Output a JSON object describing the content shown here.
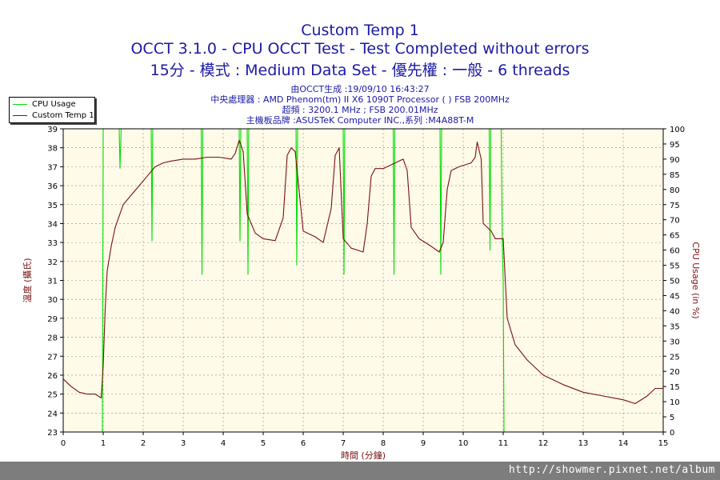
{
  "header": {
    "title": "Custom Temp 1",
    "subtitle1": "OCCT 3.1.0 - CPU OCCT Test - Test Completed without errors",
    "subtitle2": "15分 - 模式 : Medium Data Set - 優先權 : 一般 - 6 threads",
    "info1": "由OCCT生成 :19/09/10 16:43:27",
    "info2": "中央處理器 : AMD Phenom(tm) II X6 1090T Processor (   ) FSB 200MHz",
    "info3": "超頻 : 3200.1 MHz ; FSB 200.01MHz",
    "info4": "主機板品牌 :ASUSTeK Computer INC.,系列 :M4A88T-M"
  },
  "footer": {
    "watermark": "http://showmer.pixnet.net/album"
  },
  "colors": {
    "cpu_usage": "#00dd00",
    "temp": "#7a1010",
    "plot_bg": "#fffbe8",
    "text_blue": "#1a1aa6"
  },
  "chart_data": {
    "type": "line",
    "xlabel": "時間 (分鐘)",
    "ylabel_left": "溫度 (攝氏)",
    "ylabel_right": "CPU Usage (in %)",
    "xlim": [
      0,
      15
    ],
    "ylim_left": [
      23,
      39
    ],
    "ylim_right": [
      0,
      100
    ],
    "x_ticks": [
      "0",
      "1",
      "2",
      "3",
      "4",
      "5",
      "6",
      "7",
      "8",
      "9",
      "10",
      "11",
      "12",
      "13",
      "14",
      "15"
    ],
    "y_ticks_left": [
      "23",
      "24",
      "25",
      "26",
      "27",
      "28",
      "29",
      "30",
      "31",
      "32",
      "33",
      "34",
      "35",
      "36",
      "37",
      "38",
      "39"
    ],
    "y_ticks_right": [
      "0",
      "5",
      "10",
      "15",
      "20",
      "25",
      "30",
      "35",
      "40",
      "45",
      "50",
      "55",
      "60",
      "65",
      "70",
      "75",
      "80",
      "85",
      "90",
      "95",
      "100"
    ],
    "grid": true,
    "legend_position": "top-left",
    "series": [
      {
        "name": "CPU Usage",
        "axis": "right",
        "x": [
          0,
          0.98,
          1.0,
          1.03,
          1.05,
          1.4,
          1.42,
          1.45,
          2.2,
          2.22,
          2.24,
          3.45,
          3.47,
          3.49,
          4.4,
          4.42,
          4.44,
          4.6,
          4.62,
          4.64,
          5.82,
          5.84,
          5.86,
          7.0,
          7.02,
          7.04,
          8.25,
          8.27,
          8.29,
          9.42,
          9.44,
          9.46,
          10.65,
          10.67,
          10.69,
          10.95,
          10.98,
          11.0,
          11.02,
          15
        ],
        "y": [
          0,
          0,
          100,
          100,
          100,
          100,
          87,
          100,
          100,
          63,
          100,
          100,
          52,
          100,
          100,
          63,
          100,
          100,
          52,
          100,
          100,
          55,
          100,
          100,
          52,
          100,
          100,
          52,
          100,
          100,
          52,
          100,
          100,
          60,
          100,
          100,
          60,
          50,
          0,
          0
        ]
      },
      {
        "name": "Custom Temp 1",
        "axis": "left",
        "x": [
          0,
          0.2,
          0.4,
          0.6,
          0.8,
          0.95,
          1.0,
          1.05,
          1.1,
          1.2,
          1.3,
          1.5,
          1.7,
          1.9,
          2.1,
          2.3,
          2.5,
          2.7,
          3.0,
          3.3,
          3.6,
          3.9,
          4.2,
          4.3,
          4.4,
          4.5,
          4.6,
          4.8,
          5.0,
          5.3,
          5.5,
          5.6,
          5.7,
          5.8,
          6.0,
          6.3,
          6.5,
          6.7,
          6.8,
          6.9,
          7.0,
          7.2,
          7.5,
          7.6,
          7.7,
          7.8,
          8.0,
          8.3,
          8.5,
          8.6,
          8.7,
          8.9,
          9.2,
          9.4,
          9.5,
          9.6,
          9.7,
          9.9,
          10.2,
          10.3,
          10.35,
          10.45,
          10.5,
          10.7,
          10.8,
          11.0,
          11.1,
          11.3,
          11.6,
          12.0,
          12.5,
          13.0,
          13.5,
          14.0,
          14.3,
          14.6,
          14.8,
          15.0
        ],
        "y": [
          25.8,
          25.4,
          25.1,
          25.0,
          25.0,
          24.8,
          26.5,
          29.5,
          31.5,
          32.8,
          33.8,
          35.0,
          35.5,
          36.0,
          36.5,
          37.0,
          37.2,
          37.3,
          37.4,
          37.4,
          37.5,
          37.5,
          37.4,
          37.7,
          38.4,
          37.8,
          34.5,
          33.5,
          33.2,
          33.1,
          34.3,
          37.6,
          38.0,
          37.8,
          33.6,
          33.3,
          33.0,
          34.8,
          37.6,
          38.0,
          33.2,
          32.7,
          32.5,
          34.0,
          36.5,
          36.9,
          36.9,
          37.2,
          37.4,
          36.8,
          33.8,
          33.2,
          32.8,
          32.5,
          33.0,
          35.8,
          36.8,
          37.0,
          37.2,
          37.5,
          38.3,
          37.4,
          34.0,
          33.6,
          33.2,
          33.2,
          29.0,
          27.6,
          26.8,
          26.0,
          25.5,
          25.1,
          24.9,
          24.7,
          24.5,
          24.9,
          25.3,
          25.3
        ]
      }
    ]
  }
}
